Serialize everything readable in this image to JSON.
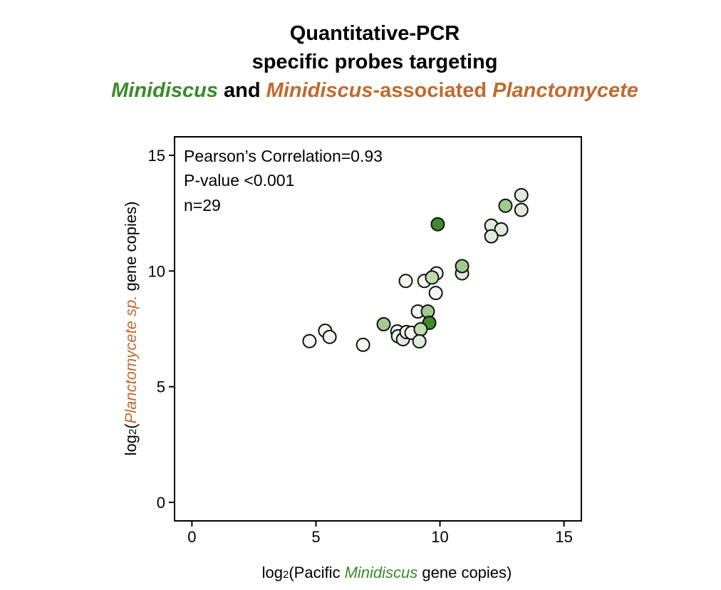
{
  "title": {
    "line1": "Quantitative-PCR",
    "line2": "specific probes targeting",
    "line3_part1": "Minidiscus",
    "line3_part2": " and ",
    "line3_part3": "Minidiscus",
    "line3_part4": "-associated ",
    "line3_part5": "Planctomycete"
  },
  "colors": {
    "green": "#3b8a28",
    "orange": "#c06a2f",
    "shades": [
      "#f3f6f0",
      "#dfecdb",
      "#bddcb0",
      "#a3c991",
      "#3e8b2c"
    ]
  },
  "chart_data": {
    "type": "scatter",
    "annotations": [
      "Pearson’s Correlation=0.93",
      "P-value <0.001",
      "n=29"
    ],
    "xlabel": {
      "prefix": "log",
      "sub": "2",
      "pre": "(Pacific ",
      "italic": "Minidiscus",
      "post": " gene copies)"
    },
    "ylabel": {
      "prefix": "log",
      "sub": "2",
      "pre": "(",
      "italic": "Planctomycete sp.",
      "post": " gene copies)"
    },
    "xlim": [
      -0.7,
      15.7
    ],
    "ylim": [
      -0.8,
      15.8
    ],
    "xticks": [
      0,
      5,
      10,
      15
    ],
    "yticks": [
      0,
      5,
      10,
      15
    ],
    "grid": false,
    "points": [
      {
        "x": 4.74,
        "y": 6.97,
        "shade": 0
      },
      {
        "x": 5.37,
        "y": 7.42,
        "shade": 0
      },
      {
        "x": 5.55,
        "y": 7.15,
        "shade": 0
      },
      {
        "x": 6.9,
        "y": 6.81,
        "shade": 0
      },
      {
        "x": 7.73,
        "y": 7.7,
        "shade": 3
      },
      {
        "x": 8.28,
        "y": 7.39,
        "shade": 0
      },
      {
        "x": 8.31,
        "y": 7.18,
        "shade": 0
      },
      {
        "x": 8.51,
        "y": 7.05,
        "shade": 1
      },
      {
        "x": 8.65,
        "y": 7.36,
        "shade": 0
      },
      {
        "x": 8.85,
        "y": 7.33,
        "shade": 0
      },
      {
        "x": 8.62,
        "y": 9.57,
        "shade": 0
      },
      {
        "x": 9.37,
        "y": 9.57,
        "shade": 0
      },
      {
        "x": 9.86,
        "y": 9.9,
        "shade": 0
      },
      {
        "x": 9.68,
        "y": 9.72,
        "shade": 2
      },
      {
        "x": 9.83,
        "y": 9.05,
        "shade": 0
      },
      {
        "x": 9.11,
        "y": 8.25,
        "shade": 0
      },
      {
        "x": 9.51,
        "y": 8.25,
        "shade": 3
      },
      {
        "x": 9.57,
        "y": 7.76,
        "shade": 4
      },
      {
        "x": 9.22,
        "y": 7.48,
        "shade": 2
      },
      {
        "x": 9.17,
        "y": 6.96,
        "shade": 1
      },
      {
        "x": 10.89,
        "y": 9.9,
        "shade": 1
      },
      {
        "x": 10.89,
        "y": 10.21,
        "shade": 3
      },
      {
        "x": 9.91,
        "y": 12.02,
        "shade": 4
      },
      {
        "x": 12.64,
        "y": 12.82,
        "shade": 3
      },
      {
        "x": 13.28,
        "y": 13.28,
        "shade": 1
      },
      {
        "x": 13.28,
        "y": 12.64,
        "shade": 1
      },
      {
        "x": 12.07,
        "y": 11.96,
        "shade": 1
      },
      {
        "x": 12.47,
        "y": 11.8,
        "shade": 1
      },
      {
        "x": 12.07,
        "y": 11.5,
        "shade": 1
      }
    ]
  }
}
